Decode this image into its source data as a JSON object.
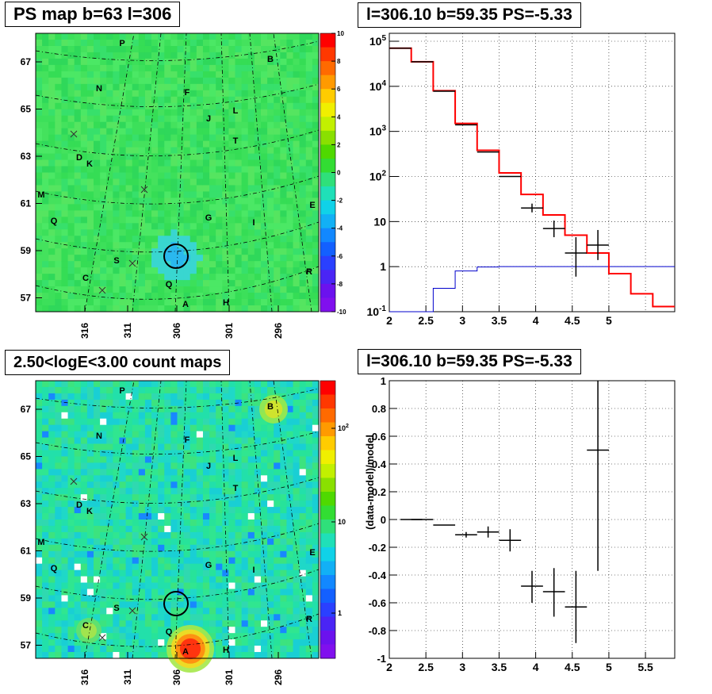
{
  "titles": {
    "ps_map": "PS map b=63 l=306",
    "spectrum": "l=306.10 b=59.35 PS=-5.33",
    "count_map": "2.50<logE<3.00 count maps",
    "residual": "l=306.10 b=59.35 PS=-5.33"
  },
  "colors": {
    "data": "#000000",
    "model": "#ff0000",
    "background_model": "#0000cc",
    "grid": "#000000",
    "map_base": "#33dd55"
  },
  "chart_data": [
    {
      "id": "ps_map",
      "type": "heatmap",
      "title": "PS map b=63 l=306",
      "y_ticks": [
        "67",
        "65",
        "63",
        "61",
        "59",
        "57"
      ],
      "x_ticks": [
        "316",
        "311",
        "306",
        "301",
        "296"
      ],
      "colorbar_ticks": [
        "10",
        "8",
        "6",
        "4",
        "2",
        "0",
        "-2",
        "-4",
        "-6",
        "-8",
        "-10"
      ],
      "colorbar_range": [
        -10,
        10
      ],
      "source_labels": [
        "P",
        "B",
        "N",
        "F",
        "L",
        "J",
        "T",
        "D",
        "K",
        "M",
        "Q",
        "G",
        "I",
        "E",
        "S",
        "C",
        "Q",
        "R",
        "A",
        "H"
      ],
      "markers": [
        "x",
        "x",
        "x",
        "x"
      ],
      "selected_source": {
        "l": 306.1,
        "b": 59.35
      }
    },
    {
      "id": "spectrum",
      "type": "line",
      "title": "l=306.10 b=59.35 PS=-5.33",
      "x_ticks": [
        "2",
        "2.5",
        "3",
        "3.5",
        "4",
        "4.5",
        "5"
      ],
      "y_ticks": [
        "10^5",
        "10^4",
        "10^3",
        "10^2",
        "10",
        "1",
        "10^-1"
      ],
      "xlim": [
        2,
        5.9
      ],
      "ylim": [
        0.1,
        150000
      ],
      "y_scale": "log",
      "grid": true,
      "series": [
        {
          "role": "model",
          "style": "step",
          "edges": [
            2.0,
            2.3,
            2.6,
            2.9,
            3.2,
            3.5,
            3.8,
            4.1,
            4.4,
            4.7,
            5.0,
            5.3,
            5.6,
            5.9
          ],
          "values": [
            70000,
            35000,
            8000,
            1500,
            380,
            120,
            40,
            14,
            5,
            2,
            0.7,
            0.25,
            0.13
          ]
        },
        {
          "role": "background_model",
          "style": "step",
          "edges": [
            2.0,
            2.3,
            2.6,
            2.9,
            3.2,
            3.5,
            3.8,
            4.1,
            4.4,
            4.7,
            5.0,
            5.3,
            5.6,
            5.9
          ],
          "values": [
            0.1,
            0.1,
            0.33,
            0.8,
            0.98,
            1.0,
            1.0,
            1.0,
            1.0,
            1.0,
            1.0,
            1.0,
            1.0
          ]
        },
        {
          "role": "data",
          "style": "errorbars",
          "x": [
            2.15,
            2.45,
            2.75,
            3.05,
            3.35,
            3.65,
            3.95,
            4.25,
            4.55,
            4.85
          ],
          "y": [
            70000,
            35000,
            7800,
            1400,
            350,
            100,
            20,
            7,
            2,
            3
          ],
          "xerr": 0.15,
          "yerr_low": [
            0,
            0,
            0,
            0,
            0,
            0,
            4,
            2.5,
            1.4,
            1.6
          ],
          "yerr_high": [
            0,
            0,
            0,
            0,
            0,
            0,
            5,
            3.5,
            2.5,
            3.5
          ]
        }
      ]
    },
    {
      "id": "count_map",
      "type": "heatmap",
      "title": "2.50<logE<3.00 count maps",
      "y_ticks": [
        "67",
        "65",
        "63",
        "61",
        "59",
        "57"
      ],
      "x_ticks": [
        "316",
        "311",
        "306",
        "301",
        "296"
      ],
      "colorbar_ticks": [
        "10^2",
        "10",
        "1"
      ],
      "color_scale": "log",
      "source_labels": [
        "P",
        "B",
        "N",
        "F",
        "L",
        "J",
        "T",
        "D",
        "K",
        "M",
        "Q",
        "G",
        "I",
        "E",
        "S",
        "C",
        "Q",
        "R",
        "A",
        "H"
      ],
      "markers": [
        "x",
        "x",
        "x",
        "x"
      ],
      "selected_source": {
        "l": 306.1,
        "b": 59.35
      }
    },
    {
      "id": "residual",
      "type": "scatter",
      "title": "l=306.10 b=59.35 PS=-5.33",
      "ylabel": "(data-model)/model",
      "x_ticks": [
        "2",
        "2.5",
        "3",
        "3.5",
        "4",
        "4.5",
        "5",
        "5.5"
      ],
      "y_ticks": [
        "1",
        "0.8",
        "0.6",
        "0.4",
        "0.2",
        "0",
        "-0.2",
        "-0.4",
        "-0.6",
        "-0.8",
        "-1"
      ],
      "xlim": [
        2,
        5.9
      ],
      "ylim": [
        -1,
        1
      ],
      "grid": true,
      "points": [
        {
          "x": 2.3,
          "y": 0.0,
          "xerr": 0.15,
          "yerr_low": 0.0,
          "yerr_high": 0.0
        },
        {
          "x": 2.45,
          "y": 0.0,
          "xerr": 0.15,
          "yerr_low": 0.0,
          "yerr_high": 0.0
        },
        {
          "x": 2.75,
          "y": -0.04,
          "xerr": 0.15,
          "yerr_low": 0.0,
          "yerr_high": 0.0
        },
        {
          "x": 3.05,
          "y": -0.11,
          "xerr": 0.15,
          "yerr_low": 0.02,
          "yerr_high": 0.02
        },
        {
          "x": 3.35,
          "y": -0.09,
          "xerr": 0.15,
          "yerr_low": 0.04,
          "yerr_high": 0.04
        },
        {
          "x": 3.65,
          "y": -0.15,
          "xerr": 0.15,
          "yerr_low": 0.08,
          "yerr_high": 0.08
        },
        {
          "x": 3.95,
          "y": -0.48,
          "xerr": 0.15,
          "yerr_low": 0.12,
          "yerr_high": 0.11
        },
        {
          "x": 4.25,
          "y": -0.52,
          "xerr": 0.15,
          "yerr_low": 0.18,
          "yerr_high": 0.17
        },
        {
          "x": 4.55,
          "y": -0.63,
          "xerr": 0.15,
          "yerr_low": 0.26,
          "yerr_high": 0.26
        },
        {
          "x": 4.85,
          "y": 0.5,
          "xerr": 0.15,
          "yerr_low": 0.87,
          "yerr_high": 0.55
        }
      ]
    }
  ]
}
